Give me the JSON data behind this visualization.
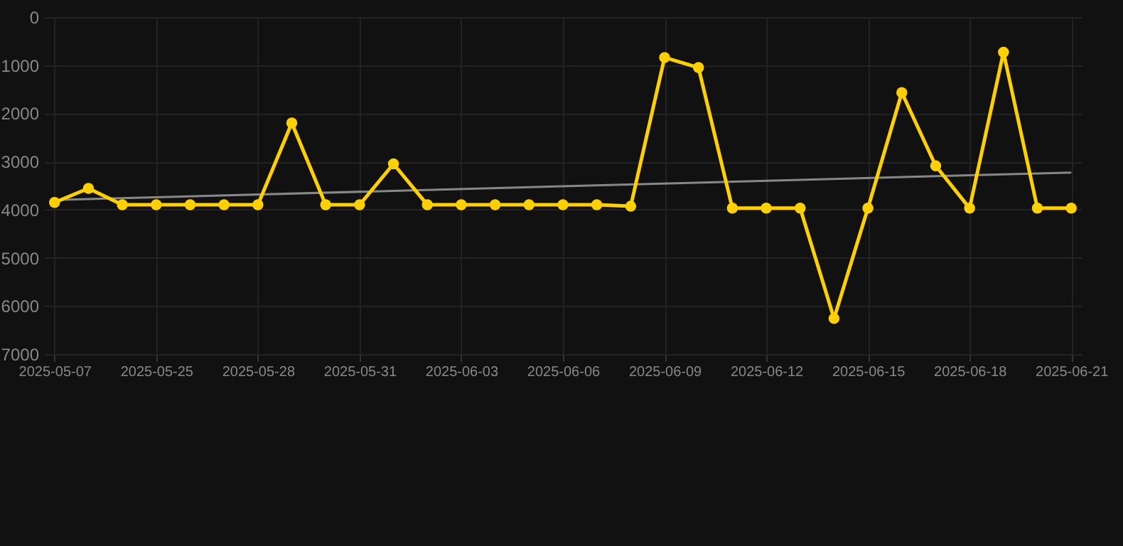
{
  "chart_data": {
    "type": "line",
    "categories": [
      "2025-05-07",
      null,
      null,
      "2025-05-25",
      null,
      null,
      "2025-05-28",
      null,
      null,
      "2025-05-31",
      null,
      null,
      "2025-06-03",
      null,
      null,
      "2025-06-06",
      null,
      null,
      "2025-06-09",
      null,
      null,
      "2025-06-12",
      null,
      null,
      "2025-06-15",
      null,
      null,
      "2025-06-18",
      null,
      null,
      "2025-06-21"
    ],
    "series": [
      {
        "color": "#ffd000",
        "values": [
          3850,
          3560,
          3900,
          3900,
          3900,
          3900,
          3900,
          2200,
          3900,
          3900,
          3050,
          3900,
          3900,
          3900,
          3900,
          3900,
          3900,
          3930,
          840,
          1050,
          3970,
          3970,
          3970,
          6260,
          3970,
          1570,
          3090,
          3970,
          730,
          3970,
          3970
        ]
      },
      {
        "type": "line",
        "color": "#888888",
        "marker": "none",
        "values": [
          3800,
          null,
          null,
          null,
          null,
          null,
          null,
          null,
          null,
          null,
          null,
          null,
          null,
          null,
          null,
          null,
          null,
          null,
          null,
          null,
          null,
          null,
          null,
          null,
          null,
          null,
          null,
          null,
          null,
          null,
          3230
        ]
      }
    ],
    "ylim": [
      7000,
      0
    ],
    "yticks": [
      0,
      1000,
      2000,
      3000,
      4000,
      5000,
      6000,
      7000
    ],
    "grid": true,
    "marker": "circle",
    "line_style": "solid"
  }
}
